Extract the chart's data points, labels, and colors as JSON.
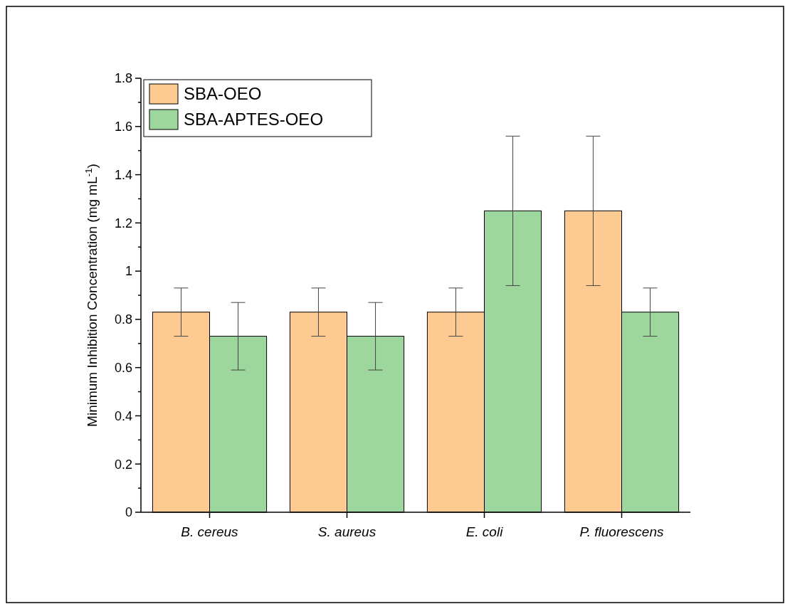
{
  "chart_data": {
    "type": "bar",
    "ylabel": "Minimum Inhibition Concentration (mg mL$^{-1}$)",
    "categories": [
      "B. cereus",
      "S. aureus",
      "E. coli",
      "P. fluorescens"
    ],
    "series": [
      {
        "name": "SBA-OEO",
        "color": "#fdcb92",
        "values": [
          0.83,
          0.83,
          0.83,
          1.25
        ],
        "errors": [
          0.1,
          0.1,
          0.1,
          0.31
        ]
      },
      {
        "name": "SBA-APTES-OEO",
        "color": "#9ed79e",
        "values": [
          0.73,
          0.73,
          1.25,
          0.83
        ],
        "errors": [
          0.14,
          0.14,
          0.31,
          0.1
        ]
      }
    ],
    "ylim": [
      0,
      1.8
    ],
    "yticks": [
      0,
      {
        "value": 0.1,
        "label": null
      },
      0.2,
      {
        "value": 0.3,
        "label": null
      },
      0.4,
      {
        "value": 0.5,
        "label": null
      },
      0.6,
      {
        "value": 0.7,
        "label": null
      },
      0.8,
      {
        "value": 0.9,
        "label": null
      },
      1,
      {
        "value": 1.1,
        "label": null
      },
      1.2,
      {
        "value": 1.3,
        "label": null
      },
      1.4,
      {
        "value": 1.5,
        "label": null
      },
      1.6,
      {
        "value": 1.7,
        "label": null
      },
      1.8
    ],
    "grid": false,
    "legend": "top left"
  }
}
